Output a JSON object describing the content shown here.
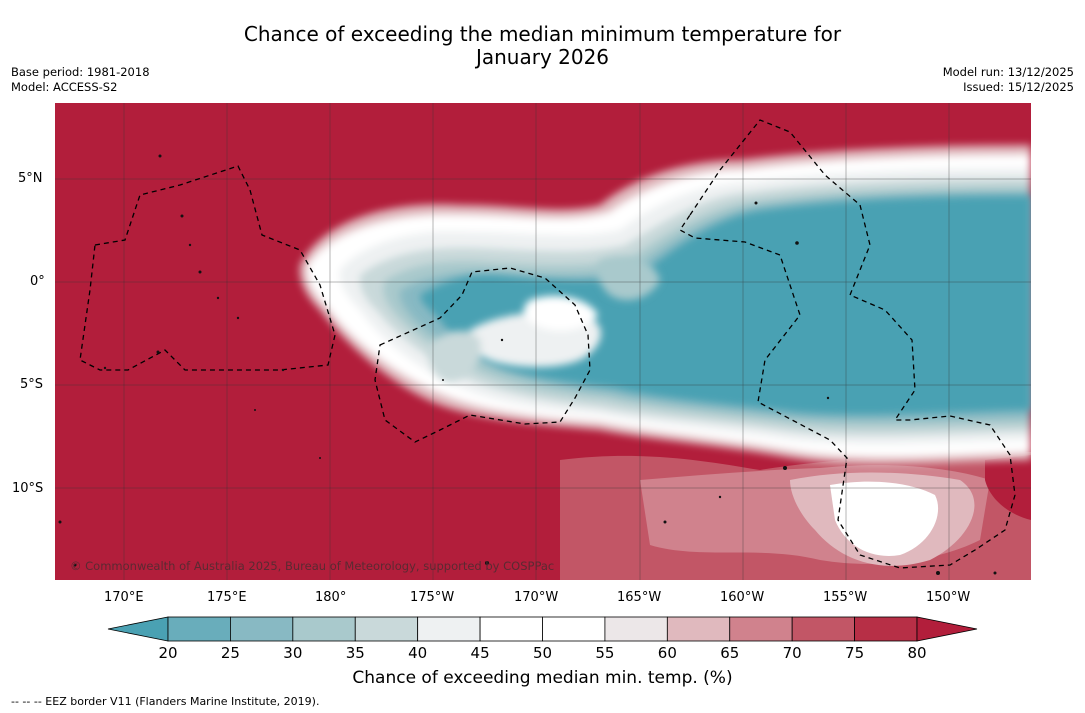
{
  "title_line1": "Chance of exceeding the median minimum temperature for",
  "title_line2": "January 2026",
  "base_period": "Base period: 1981-2018",
  "model": "Model: ACCESS-S2",
  "model_run": "Model run: 13/12/2025",
  "issued": "Issued: 15/12/2025",
  "copyright": "© Commonwealth of Australia 2025, Bureau of Meteorology, supported by COSPPac",
  "lat_labels": [
    "5°N",
    "0°",
    "5°S",
    "10°S"
  ],
  "lon_labels": [
    "170°E",
    "175°E",
    "180°",
    "175°W",
    "170°W",
    "165°W",
    "160°W",
    "155°W",
    "150°W"
  ],
  "colorbar": {
    "title": "Chance of exceeding median min. temp. (%)",
    "ticks": [
      "20",
      "25",
      "30",
      "35",
      "40",
      "45",
      "50",
      "55",
      "60",
      "65",
      "70",
      "75",
      "80"
    ],
    "colors": [
      "#4aa1b3",
      "#69adbb",
      "#88b9c3",
      "#a9c9cc",
      "#c9d9da",
      "#eef1f2",
      "#ffffff",
      "#ffffff",
      "#ece7e8",
      "#e0b9be",
      "#d0828d",
      "#c25666",
      "#b72f46",
      "#b21e3b"
    ]
  },
  "colors": {
    "warm": "#b21e3b",
    "cool": "#4aa1b3"
  },
  "footer": "--  --  -- EEZ border V11 (Flanders Marine Institute, 2019)."
}
